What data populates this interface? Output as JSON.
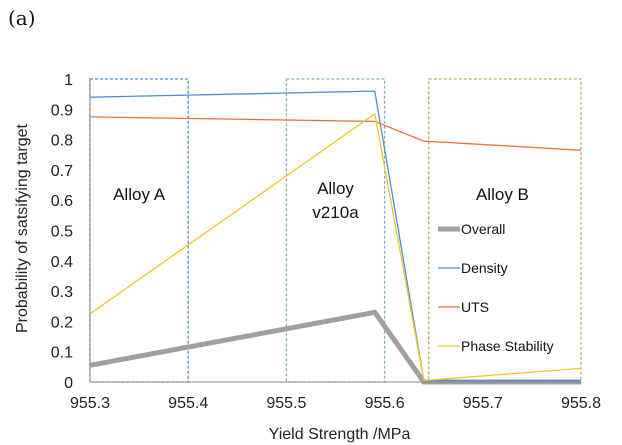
{
  "panel_label": "(a)",
  "chart_data": {
    "type": "line",
    "title": "",
    "xlabel": "Yield Strength /MPa",
    "ylabel": "Probability of satsifying target",
    "xlim": [
      955.3,
      955.8
    ],
    "ylim": [
      0,
      1
    ],
    "xticks": [
      "955.3",
      "955.4",
      "955.5",
      "955.6",
      "955.7",
      "955.8"
    ],
    "yticks": [
      "0",
      "0.1",
      "0.2",
      "0.3",
      "0.4",
      "0.5",
      "0.6",
      "0.7",
      "0.8",
      "0.9",
      "1"
    ],
    "grid": false,
    "legend_position": "inside-right",
    "series": [
      {
        "name": "Overall",
        "color": "#a0a0a0",
        "width": 5,
        "x": [
          955.3,
          955.59,
          955.64,
          955.8
        ],
        "y": [
          0.055,
          0.23,
          0.0,
          0.0
        ]
      },
      {
        "name": "Density",
        "color": "#4f8fd0",
        "width": 1.3,
        "x": [
          955.3,
          955.59,
          955.64,
          955.8
        ],
        "y": [
          0.94,
          0.96,
          0.005,
          0.005
        ]
      },
      {
        "name": "UTS",
        "color": "#e8733a",
        "width": 1.3,
        "x": [
          955.3,
          955.59,
          955.64,
          955.8
        ],
        "y": [
          0.875,
          0.86,
          0.795,
          0.765
        ]
      },
      {
        "name": "Phase Stability",
        "color": "#f0c62c",
        "width": 1.3,
        "x": [
          955.3,
          955.59,
          955.64,
          955.8
        ],
        "y": [
          0.225,
          0.885,
          0.005,
          0.045
        ]
      }
    ],
    "regions": [
      {
        "label_lines": [
          "Alloy A"
        ],
        "x_range": [
          955.3,
          955.4
        ],
        "color": "#4f8fd0",
        "label_x": 955.35,
        "label_y": 0.6
      },
      {
        "label_lines": [
          "Alloy",
          "v210a"
        ],
        "x_range": [
          955.5,
          955.6
        ],
        "color": "#8ca8c8",
        "label_x": 955.55,
        "label_y": 0.62
      },
      {
        "label_lines": [
          "Alloy B"
        ],
        "x_range": [
          955.645,
          955.8
        ],
        "color": "#9bbb59",
        "label_x": 955.72,
        "label_y": 0.6
      }
    ]
  }
}
